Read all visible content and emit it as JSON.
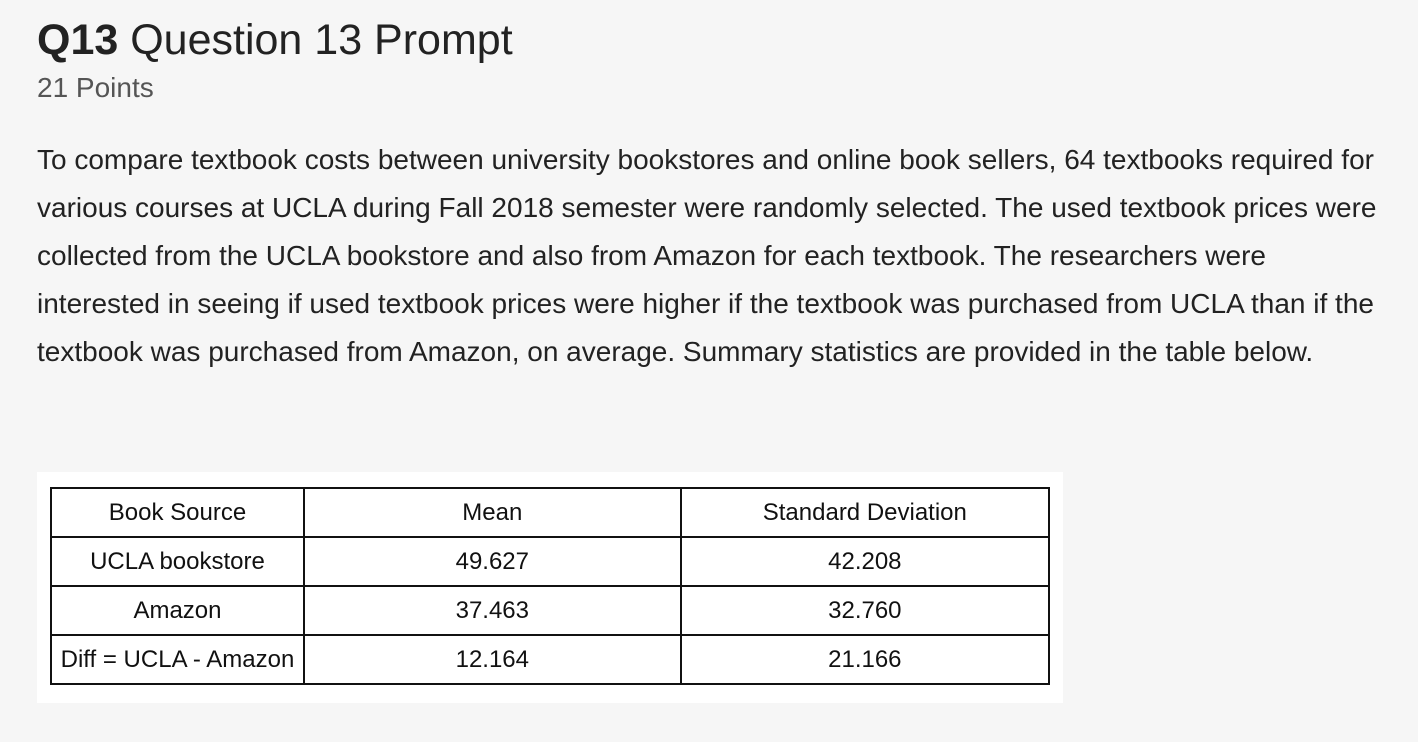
{
  "question": {
    "number": "Q13",
    "title": "Question 13 Prompt",
    "points": "21 Points",
    "prompt": "To compare textbook costs between university bookstores and online book sellers, 64 textbooks required for various courses at UCLA during Fall 2018 semester were randomly selected. The used textbook prices were collected from the UCLA bookstore and also from Amazon for each textbook. The researchers were interested in seeing if used textbook prices were higher if the textbook was purchased from UCLA than if the textbook was purchased from Amazon, on average. Summary statistics are provided in the table below."
  },
  "table": {
    "headers": [
      "Book Source",
      "Mean",
      "Standard Deviation"
    ],
    "rows": [
      [
        "UCLA bookstore",
        "49.627",
        "42.208"
      ],
      [
        "Amazon",
        "37.463",
        "32.760"
      ],
      [
        "Diff = UCLA - Amazon",
        "12.164",
        "21.166"
      ]
    ]
  }
}
